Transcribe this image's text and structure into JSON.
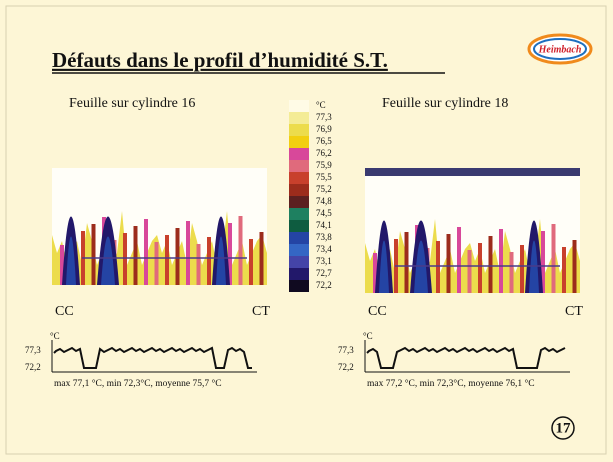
{
  "header": {
    "title": "Défauts dans le profil d’humidité S.T.",
    "logo": "Heimbach"
  },
  "scale": {
    "unit": "°C",
    "entries": [
      {
        "label": "77,3",
        "color": "#f4ec96"
      },
      {
        "label": "76,9",
        "color": "#ecdc4c"
      },
      {
        "label": "76,5",
        "color": "#f2cf10"
      },
      {
        "label": "76,2",
        "color": "#d8489a"
      },
      {
        "label": "75,9",
        "color": "#e06a7c"
      },
      {
        "label": "75,5",
        "color": "#c8402c"
      },
      {
        "label": "75,2",
        "color": "#9c2c1c"
      },
      {
        "label": "74,8",
        "color": "#5c2020"
      },
      {
        "label": "74,5",
        "color": "#1e8060"
      },
      {
        "label": "74,1",
        "color": "#0e5c40"
      },
      {
        "label": "73,8",
        "color": "#2444a4"
      },
      {
        "label": "73,4",
        "color": "#3466c4"
      },
      {
        "label": "73,1",
        "color": "#4444a8"
      },
      {
        "label": "72,7",
        "color": "#22186a"
      },
      {
        "label": "72,2",
        "color": "#100a20"
      }
    ]
  },
  "panels": [
    {
      "caption": "Feuille sur cylindre 16",
      "left_label": "CC",
      "right_label": "CT",
      "profile": {
        "unit": "°C",
        "top": "77,3",
        "bottom": "72,2",
        "summary": "max 77,1 °C, min 72,3°C, moyenne 75,7 °C"
      }
    },
    {
      "caption": "Feuille sur cylindre 18",
      "left_label": "CC",
      "right_label": "CT",
      "profile": {
        "unit": "°C",
        "top": "77,3",
        "bottom": "72,2",
        "summary": "max 77,2 °C, min 72,3°C, moyenne 76,1 °C"
      }
    }
  ],
  "page_number": "17"
}
